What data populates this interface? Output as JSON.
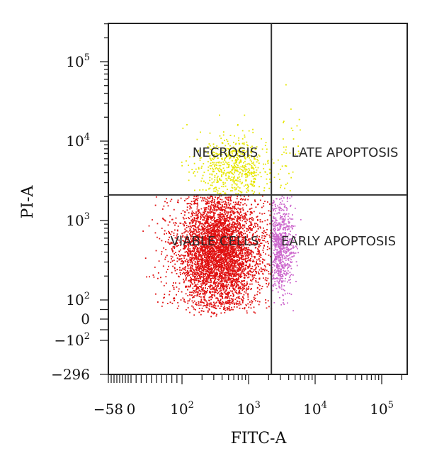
{
  "chart_data": {
    "type": "scatter",
    "title": "",
    "xlabel": "FITC-A",
    "ylabel": "PI-A",
    "scale": "biexponential (linear near zero, log above)",
    "x_ticks": [
      "−58",
      "0",
      "10^2",
      "10^3",
      "10^4",
      "10^5"
    ],
    "y_ticks": [
      "10^5",
      "10^4",
      "10^3",
      "10^2",
      "0",
      "−10^2",
      "−296"
    ],
    "gates": {
      "x_threshold": 2200,
      "y_threshold": 2100
    },
    "quadrants": [
      {
        "label": "NECROSIS",
        "color": "#e6e600",
        "position": "top-left"
      },
      {
        "label": "LATE APOPTOSIS",
        "color": "#e6e600",
        "position": "top-right"
      },
      {
        "label": "VIABLE CELLS",
        "color": "#e01010",
        "position": "bottom-left"
      },
      {
        "label": "EARLY APOPTOSIS",
        "color": "#cc66cc",
        "position": "bottom-right"
      }
    ],
    "populations": [
      {
        "label": "VIABLE CELLS",
        "color": "#e01010",
        "center_x": 350,
        "center_y": 400,
        "approx_events": 4500
      },
      {
        "label": "NECROSIS",
        "color": "#e6e600",
        "center_x": 600,
        "center_y": 5000,
        "approx_events": 600
      },
      {
        "label": "EARLY APOPTOSIS",
        "color": "#cc66cc",
        "center_x": 3000,
        "center_y": 500,
        "approx_events": 700
      },
      {
        "label": "LATE APOPTOSIS",
        "color": "#e6e600",
        "center_x": 3500,
        "center_y": 6000,
        "approx_events": 40
      }
    ]
  }
}
